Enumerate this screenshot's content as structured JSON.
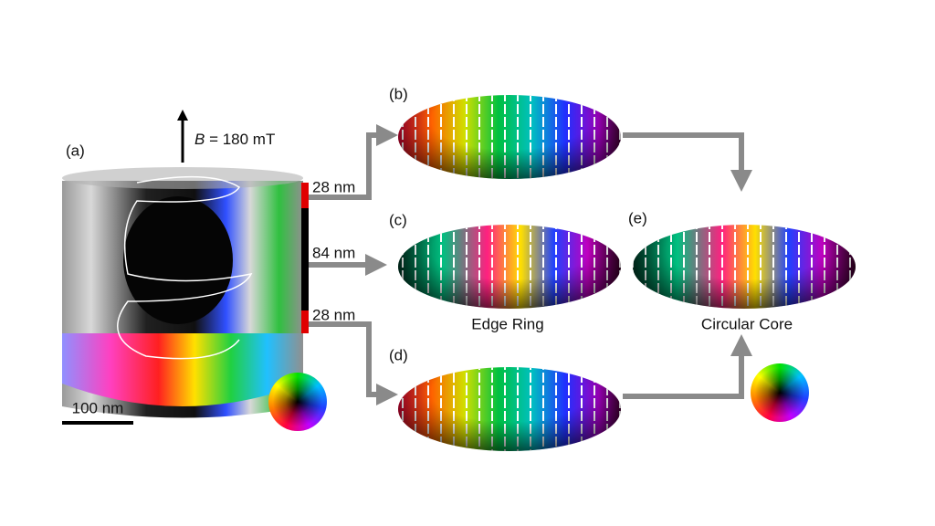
{
  "panels": [
    {
      "label": "(a)"
    },
    {
      "label": "(b)"
    },
    {
      "label": "(c)"
    },
    {
      "label": "(d)"
    },
    {
      "label": "(e)"
    }
  ],
  "field": {
    "symbol": "B",
    "value": " = 180 mT"
  },
  "thicknesses": [
    "28 nm",
    "84 nm",
    "28 nm"
  ],
  "captions": {
    "c": "Edge Ring",
    "e": "Circular Core"
  },
  "scale_bar": "100 nm"
}
